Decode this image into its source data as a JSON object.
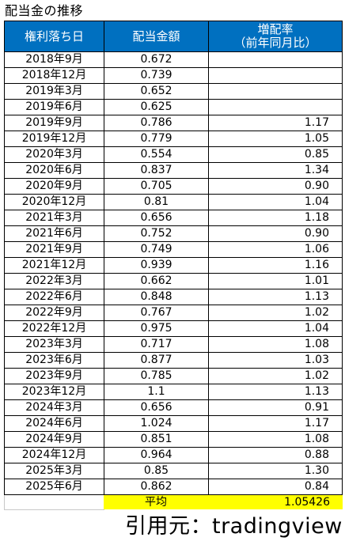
{
  "title": "配当金の推移",
  "table": {
    "headers": {
      "date": "権利落ち日",
      "amount": "配当金額",
      "rate_line1": "増配率",
      "rate_line2": "（前年同月比）"
    },
    "rows": [
      {
        "date": "2018年9月",
        "amount": "0.672",
        "rate": ""
      },
      {
        "date": "2018年12月",
        "amount": "0.739",
        "rate": ""
      },
      {
        "date": "2019年3月",
        "amount": "0.652",
        "rate": ""
      },
      {
        "date": "2019年6月",
        "amount": "0.625",
        "rate": ""
      },
      {
        "date": "2019年9月",
        "amount": "0.786",
        "rate": "1.17"
      },
      {
        "date": "2019年12月",
        "amount": "0.779",
        "rate": "1.05"
      },
      {
        "date": "2020年3月",
        "amount": "0.554",
        "rate": "0.85"
      },
      {
        "date": "2020年6月",
        "amount": "0.837",
        "rate": "1.34"
      },
      {
        "date": "2020年9月",
        "amount": "0.705",
        "rate": "0.90"
      },
      {
        "date": "2020年12月",
        "amount": "0.81",
        "rate": "1.04"
      },
      {
        "date": "2021年3月",
        "amount": "0.656",
        "rate": "1.18"
      },
      {
        "date": "2021年6月",
        "amount": "0.752",
        "rate": "0.90"
      },
      {
        "date": "2021年9月",
        "amount": "0.749",
        "rate": "1.06"
      },
      {
        "date": "2021年12月",
        "amount": "0.939",
        "rate": "1.16"
      },
      {
        "date": "2022年3月",
        "amount": "0.662",
        "rate": "1.01"
      },
      {
        "date": "2022年6月",
        "amount": "0.848",
        "rate": "1.13"
      },
      {
        "date": "2022年9月",
        "amount": "0.767",
        "rate": "1.02"
      },
      {
        "date": "2022年12月",
        "amount": "0.975",
        "rate": "1.04"
      },
      {
        "date": "2023年3月",
        "amount": "0.717",
        "rate": "1.08"
      },
      {
        "date": "2023年6月",
        "amount": "0.877",
        "rate": "1.03"
      },
      {
        "date": "2023年9月",
        "amount": "0.785",
        "rate": "1.02"
      },
      {
        "date": "2023年12月",
        "amount": "1.1",
        "rate": "1.13"
      },
      {
        "date": "2024年3月",
        "amount": "0.656",
        "rate": "0.91"
      },
      {
        "date": "2024年6月",
        "amount": "1.024",
        "rate": "1.17"
      },
      {
        "date": "2024年9月",
        "amount": "0.851",
        "rate": "1.08"
      },
      {
        "date": "2024年12月",
        "amount": "0.964",
        "rate": "0.88"
      },
      {
        "date": "2025年3月",
        "amount": "0.85",
        "rate": "1.30"
      },
      {
        "date": "2025年6月",
        "amount": "0.862",
        "rate": "0.84"
      }
    ]
  },
  "average": {
    "label": "平均",
    "value": "1.05426"
  },
  "source": "引用元：tradingview",
  "colors": {
    "header_bg": "#0070c0",
    "header_text": "#ffffff",
    "average_bg": "#ffff00"
  }
}
